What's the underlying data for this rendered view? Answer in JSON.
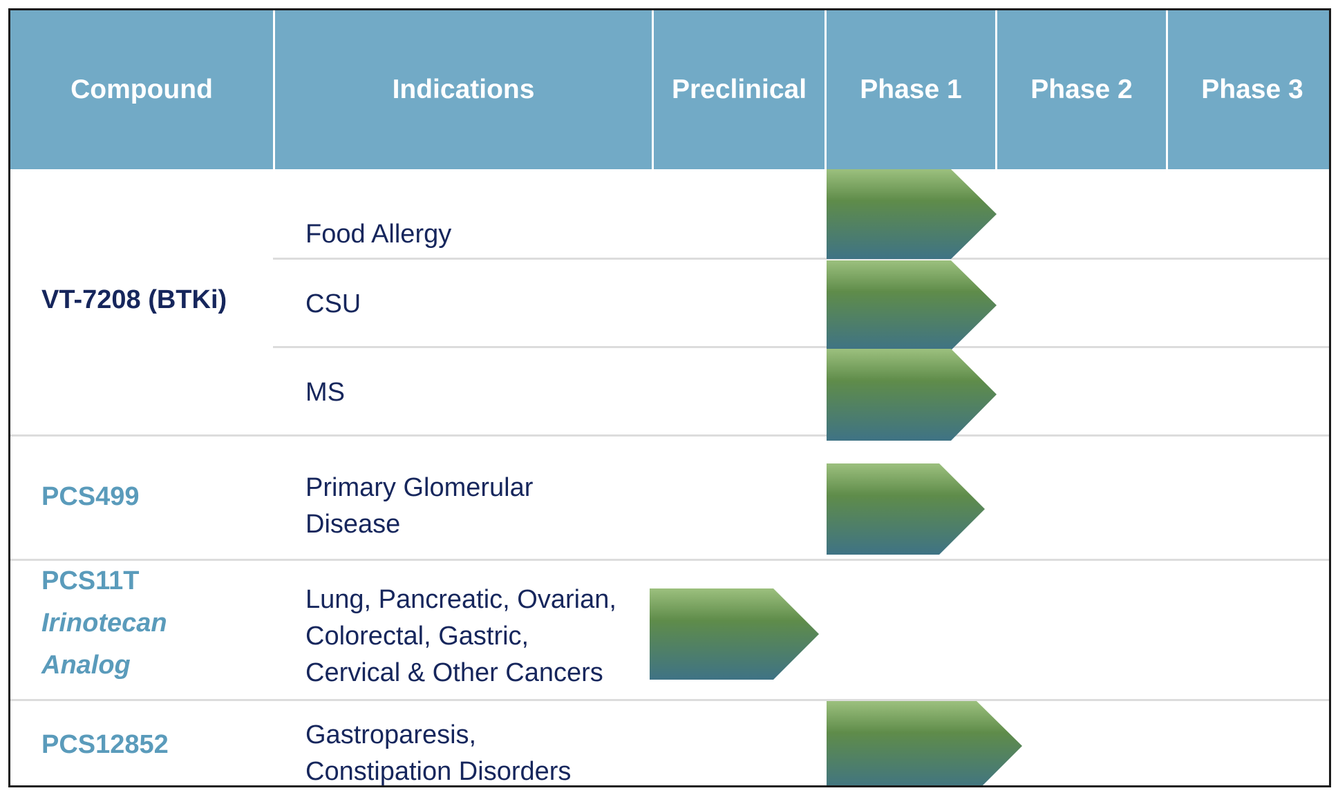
{
  "colors": {
    "header_bg": "#72aac6",
    "header_text": "#ffffff",
    "dark_text": "#16265c",
    "compound_blue": "#5a9bbb",
    "bar_top": "#9cc07e",
    "bar_mid": "#5f8c4a",
    "bar_bottom": "#3f7385"
  },
  "header": {
    "compound": "Compound",
    "indications": "Indications",
    "preclinical": "Preclinical",
    "phase1": "Phase 1",
    "phase2": "Phase 2",
    "phase3": "Phase 3"
  },
  "pipeline": [
    {
      "compound": "VT-7208 (BTKi)",
      "indications": [
        {
          "lines": [
            "Food Allergy"
          ],
          "stage": "Phase 1"
        },
        {
          "lines": [
            "CSU"
          ],
          "stage": "Phase 1"
        },
        {
          "lines": [
            "MS"
          ],
          "stage": "Phase 1"
        }
      ]
    },
    {
      "compound": "PCS499",
      "indications": [
        {
          "lines": [
            "Primary Glomerular",
            "Disease"
          ],
          "stage": "Phase 1"
        }
      ]
    },
    {
      "compound_lines": [
        "PCS11T",
        "Irinotecan",
        "Analog"
      ],
      "indications": [
        {
          "lines": [
            "Lung, Pancreatic, Ovarian,",
            "Colorectal, Gastric,",
            "Cervical & Other Cancers"
          ],
          "stage": "Preclinical"
        }
      ]
    },
    {
      "compound": "PCS12852",
      "indications": [
        {
          "lines": [
            "Gastroparesis,",
            "Constipation Disorders"
          ],
          "stage": "Phase 1"
        }
      ]
    }
  ]
}
